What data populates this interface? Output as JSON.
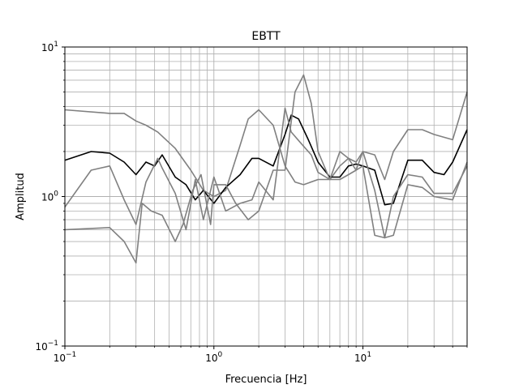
{
  "chart_data": {
    "type": "line",
    "title": "EBTT",
    "xlabel": "Frecuencia [Hz]",
    "ylabel": "Amplitud",
    "xscale": "log",
    "yscale": "log",
    "xlim": [
      0.1,
      50
    ],
    "ylim": [
      0.1,
      10
    ],
    "grid": true,
    "grid_minor": true,
    "x_ticks": [
      {
        "value": 0.1,
        "base": "10",
        "exp": "−1"
      },
      {
        "value": 1,
        "base": "10",
        "exp": "0"
      },
      {
        "value": 10,
        "base": "10",
        "exp": "1"
      }
    ],
    "y_ticks": [
      {
        "value": 0.1,
        "base": "10",
        "exp": "−1"
      },
      {
        "value": 1,
        "base": "10",
        "exp": "0"
      },
      {
        "value": 10,
        "base": "10",
        "exp": "1"
      }
    ],
    "series": [
      {
        "color": "#808080",
        "x": [
          0.1,
          0.2,
          0.25,
          0.3,
          0.35,
          0.42,
          0.55,
          0.7,
          0.85,
          1.0,
          1.2,
          1.5,
          1.7,
          2.0,
          2.5,
          3.0,
          3.5,
          4.0,
          5.0,
          6.0,
          7.0,
          8.0,
          9.0,
          10.0,
          12.0,
          14.0,
          16.0,
          20.0,
          25.0,
          30.0,
          40.0,
          50.0
        ],
        "y": [
          3.8,
          3.6,
          3.6,
          3.2,
          3.0,
          2.7,
          2.1,
          1.5,
          1.1,
          1.0,
          1.1,
          2.2,
          3.3,
          3.8,
          3.0,
          1.6,
          1.25,
          1.2,
          1.3,
          1.3,
          1.6,
          1.8,
          1.7,
          2.0,
          1.9,
          1.3,
          2.0,
          2.8,
          2.8,
          2.6,
          2.4,
          5.0
        ]
      },
      {
        "color": "#000000",
        "x": [
          0.1,
          0.15,
          0.2,
          0.25,
          0.3,
          0.35,
          0.4,
          0.45,
          0.55,
          0.65,
          0.75,
          0.85,
          1.0,
          1.2,
          1.5,
          1.8,
          2.0,
          2.5,
          3.0,
          3.3,
          3.7,
          4.3,
          5.0,
          6.0,
          7.0,
          8.0,
          9.0,
          10.0,
          12.0,
          14.0,
          16.0,
          20.0,
          25.0,
          30.0,
          35.0,
          40.0,
          50.0
        ],
        "y": [
          1.75,
          2.0,
          1.95,
          1.7,
          1.4,
          1.7,
          1.6,
          1.9,
          1.35,
          1.2,
          0.95,
          1.1,
          0.9,
          1.15,
          1.4,
          1.8,
          1.8,
          1.6,
          2.6,
          3.5,
          3.3,
          2.4,
          1.7,
          1.35,
          1.35,
          1.6,
          1.65,
          1.6,
          1.5,
          0.88,
          0.9,
          1.75,
          1.75,
          1.45,
          1.4,
          1.7,
          2.8
        ]
      },
      {
        "color": "#808080",
        "x": [
          0.1,
          0.15,
          0.2,
          0.25,
          0.3,
          0.35,
          0.42,
          0.45,
          0.55,
          0.65,
          0.75,
          0.85,
          1.0,
          1.2,
          1.5,
          1.8,
          2.0,
          2.5,
          3.0,
          3.3,
          3.8,
          4.5,
          5.0,
          6.0,
          7.0,
          8.0,
          9.0,
          10.0,
          12.0,
          14.0,
          16.0,
          20.0,
          25.0,
          30.0,
          40.0,
          50.0
        ],
        "y": [
          0.85,
          1.5,
          1.6,
          0.95,
          0.65,
          1.25,
          1.8,
          1.55,
          1.05,
          0.6,
          1.3,
          0.7,
          1.35,
          0.8,
          0.9,
          0.95,
          1.25,
          0.95,
          3.9,
          2.7,
          2.3,
          1.9,
          1.45,
          1.3,
          2.0,
          1.8,
          1.5,
          1.6,
          0.55,
          0.53,
          1.0,
          1.4,
          1.35,
          1.05,
          1.05,
          1.6
        ]
      },
      {
        "color": "#808080",
        "x": [
          0.1,
          0.2,
          0.25,
          0.3,
          0.33,
          0.38,
          0.45,
          0.55,
          0.62,
          0.72,
          0.82,
          0.95,
          1.0,
          1.2,
          1.4,
          1.7,
          2.0,
          2.5,
          3.0,
          3.5,
          4.0,
          4.5,
          5.0,
          6.0,
          7.0,
          8.0,
          9.0,
          10.0,
          12.0,
          14.0,
          16.0,
          20.0,
          25.0,
          30.0,
          40.0,
          50.0
        ],
        "y": [
          0.6,
          0.62,
          0.5,
          0.36,
          0.9,
          0.8,
          0.75,
          0.5,
          0.65,
          1.1,
          1.4,
          0.65,
          1.2,
          1.2,
          0.9,
          0.7,
          0.8,
          1.5,
          1.5,
          5.0,
          6.5,
          4.2,
          2.0,
          1.3,
          1.3,
          1.4,
          1.5,
          2.0,
          1.1,
          0.53,
          0.55,
          1.2,
          1.15,
          1.0,
          0.95,
          1.7
        ]
      }
    ]
  }
}
